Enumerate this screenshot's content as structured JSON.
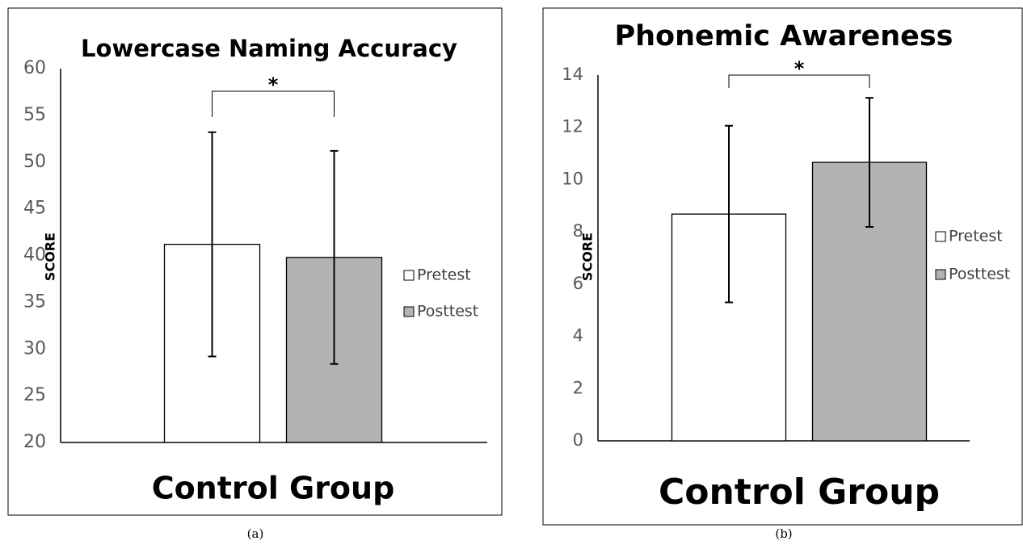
{
  "chart_data": [
    {
      "type": "bar",
      "title": "Lowercase Naming Accuracy",
      "y_label": "SCORE",
      "caption": "(a)",
      "annotation": "*",
      "categories": [
        "Control Group"
      ],
      "series": [
        {
          "name": "Pretest",
          "color": "#ffffff",
          "values": [
            41.2
          ],
          "errors": [
            12
          ]
        },
        {
          "name": "Posttest",
          "color": "#b3b3b3",
          "values": [
            39.8
          ],
          "errors": [
            11.4
          ]
        }
      ],
      "ylim": [
        20,
        60
      ],
      "yticks": [
        20,
        25,
        30,
        35,
        40,
        45,
        50,
        55,
        60
      ],
      "legend": "right"
    },
    {
      "type": "bar",
      "title": "Phonemic Awareness",
      "y_label": "SCORE",
      "caption": "(b)",
      "annotation": "*",
      "categories": [
        "Control Group"
      ],
      "series": [
        {
          "name": "Pretest",
          "color": "#ffffff",
          "values": [
            8.68
          ],
          "errors": [
            3.38
          ]
        },
        {
          "name": "Posttest",
          "color": "#b3b3b3",
          "values": [
            10.66
          ],
          "errors": [
            2.47
          ]
        }
      ],
      "ylim": [
        0,
        14
      ],
      "yticks": [
        0,
        2,
        4,
        6,
        8,
        10,
        12,
        14
      ],
      "legend": "right"
    }
  ]
}
